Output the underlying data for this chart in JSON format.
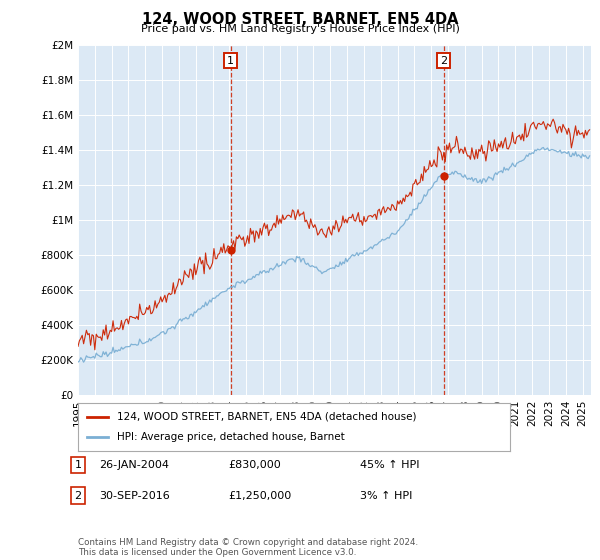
{
  "title": "124, WOOD STREET, BARNET, EN5 4DA",
  "subtitle": "Price paid vs. HM Land Registry's House Price Index (HPI)",
  "bg_color": "#dce9f5",
  "hpi_color": "#7bafd4",
  "price_color": "#cc2200",
  "ylim": [
    0,
    2000000
  ],
  "yticks": [
    0,
    200000,
    400000,
    600000,
    800000,
    1000000,
    1200000,
    1400000,
    1600000,
    1800000,
    2000000
  ],
  "ylabel_map": {
    "0": "£0",
    "200000": "£200K",
    "400000": "£400K",
    "600000": "£600K",
    "800000": "£800K",
    "1000000": "£1M",
    "1200000": "£1.2M",
    "1400000": "£1.4M",
    "1600000": "£1.6M",
    "1800000": "£1.8M",
    "2000000": "£2M"
  },
  "transaction1": {
    "date": "26-JAN-2004",
    "price": 830000,
    "x_year": 2004.07
  },
  "transaction2": {
    "date": "30-SEP-2016",
    "price": 1250000,
    "x_year": 2016.75
  },
  "legend_entry1": "124, WOOD STREET, BARNET, EN5 4DA (detached house)",
  "legend_entry2": "HPI: Average price, detached house, Barnet",
  "footer": "Contains HM Land Registry data © Crown copyright and database right 2024.\nThis data is licensed under the Open Government Licence v3.0.",
  "xmin": 1995,
  "xmax": 2025.5
}
